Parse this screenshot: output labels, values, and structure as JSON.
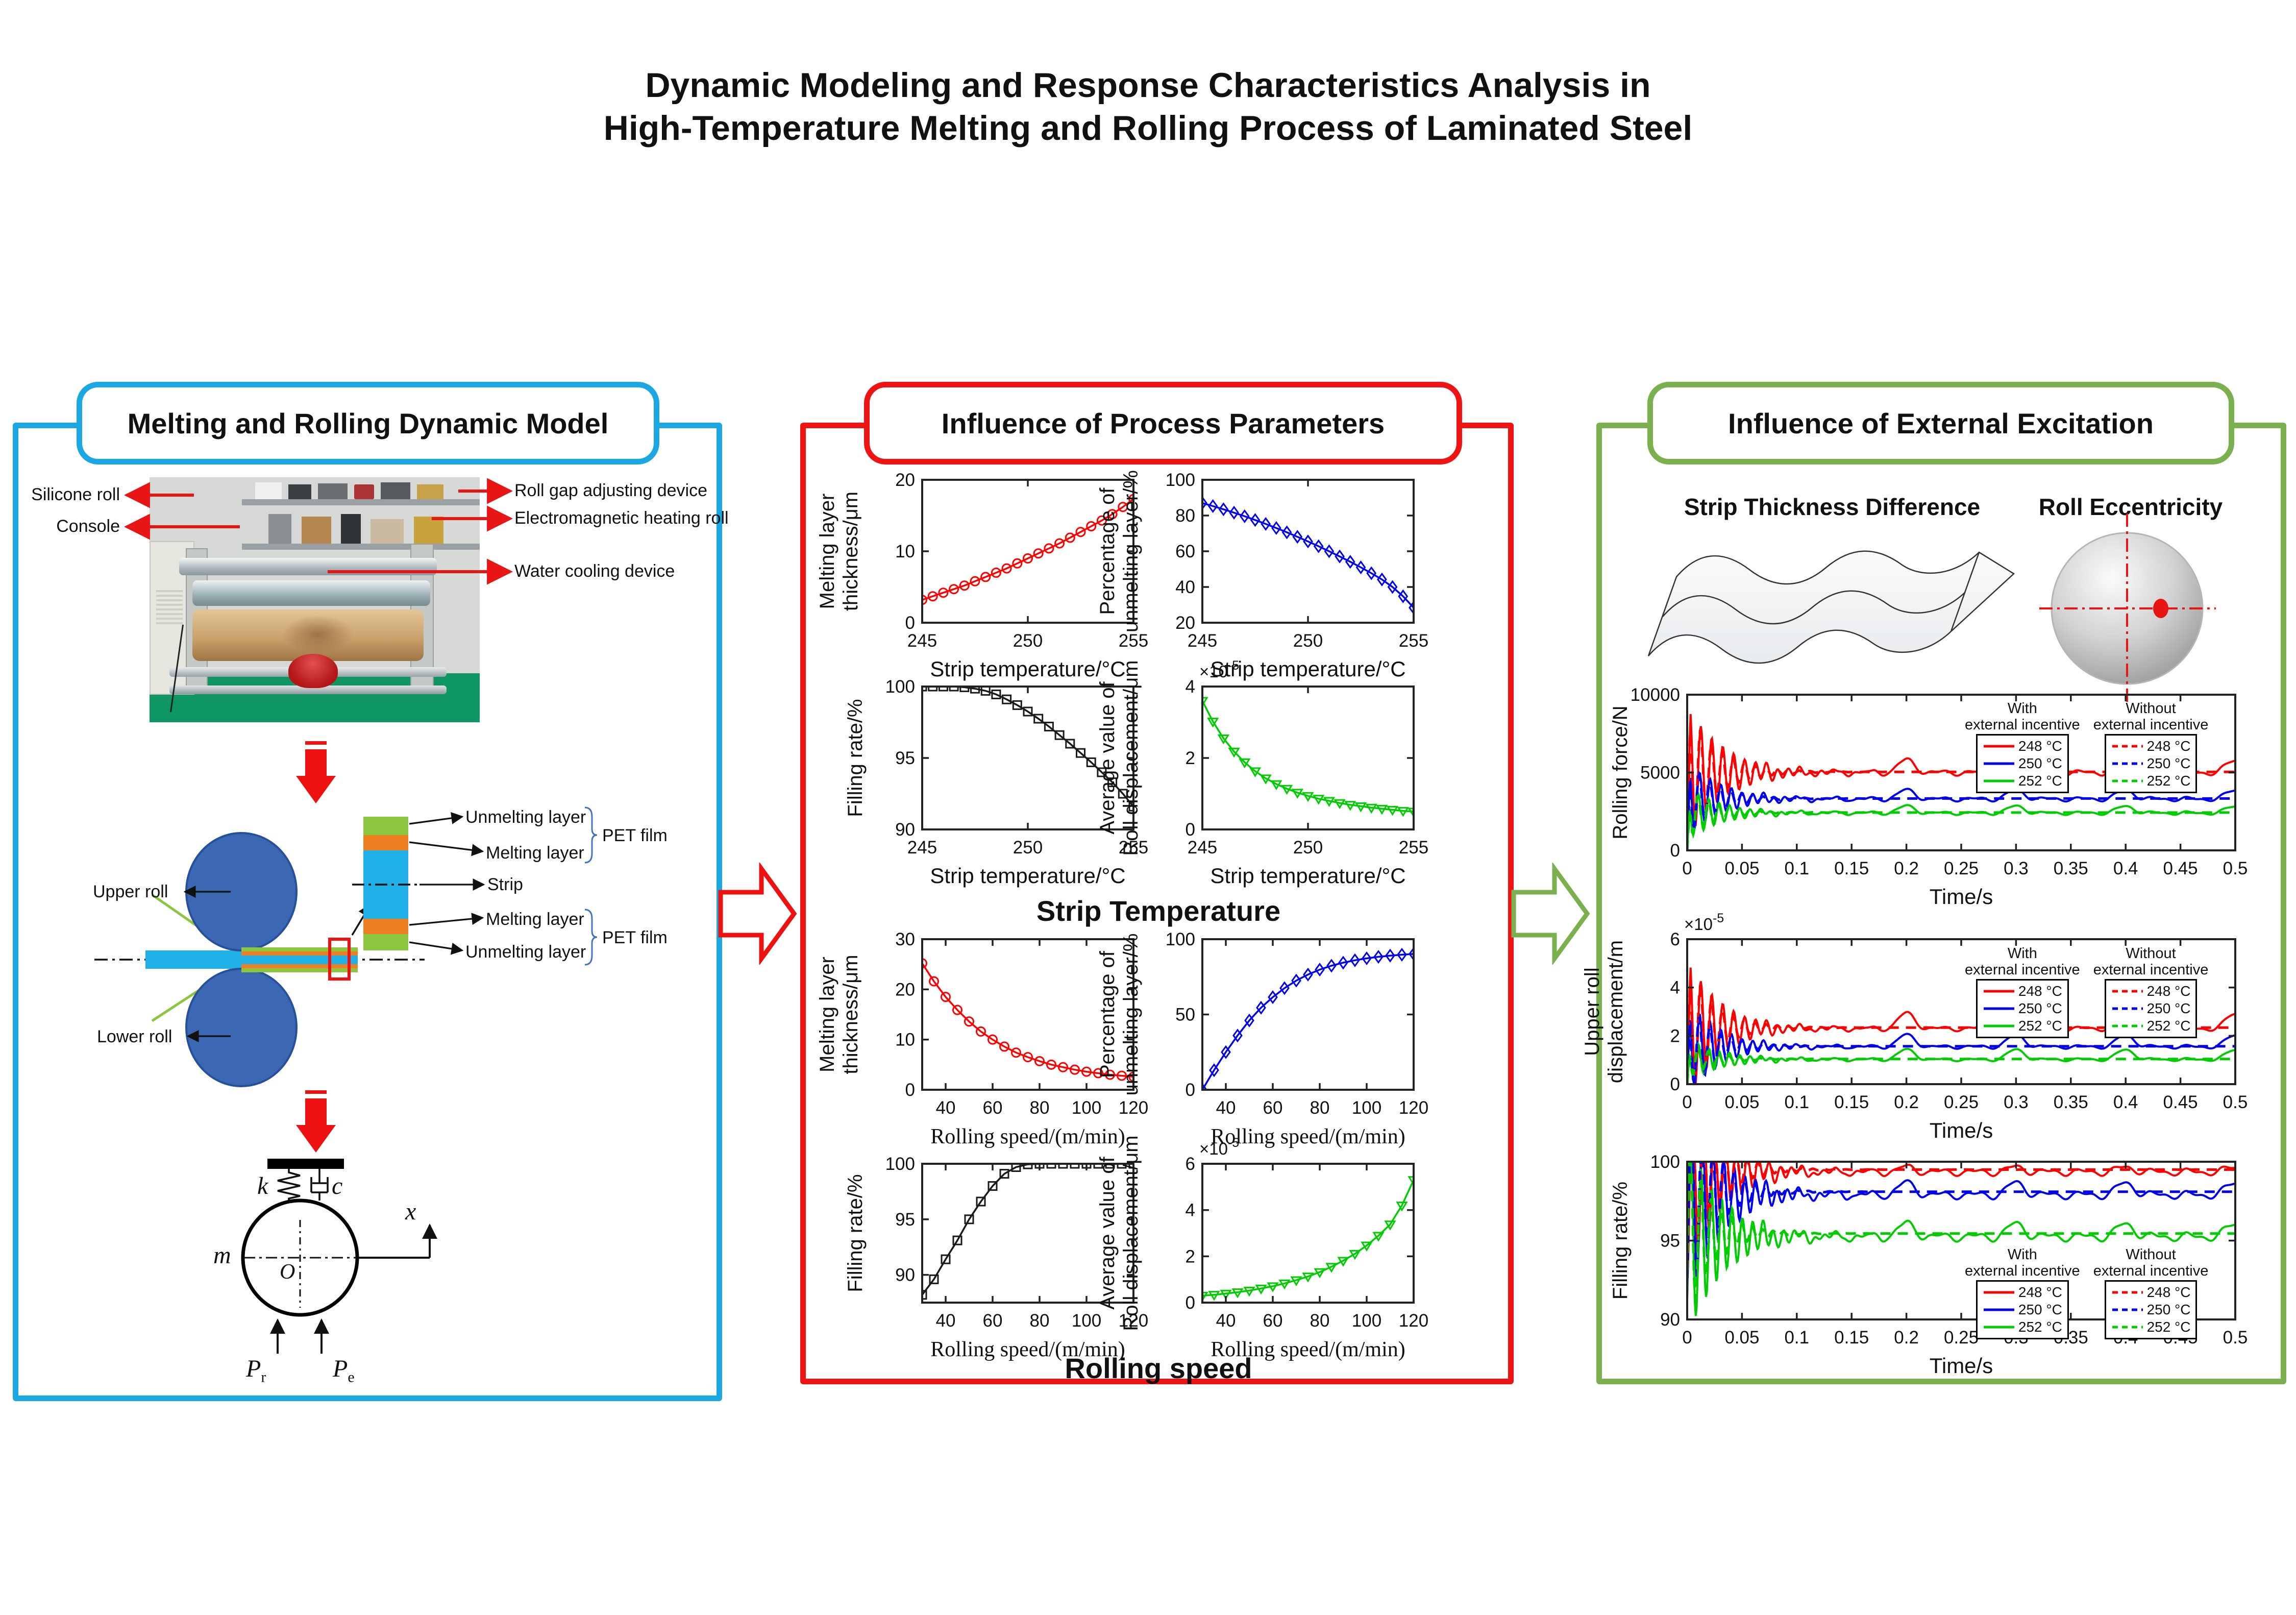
{
  "title": {
    "line1": "Dynamic Modeling and Response Characteristics Analysis in",
    "line2": "High-Temperature Melting and Rolling Process of Laminated Steel"
  },
  "panels": {
    "left": {
      "title": "Melting and Rolling Dynamic Model",
      "accent": "#1aa7e2"
    },
    "middle": {
      "title": "Influence of Process Parameters",
      "accent": "#ee1414",
      "sections": {
        "temperature": "Strip Temperature",
        "speed": "Rolling speed"
      }
    },
    "right": {
      "title": "Influence of External Excitation",
      "accent": "#7ab14e",
      "thickness_label": "Strip Thickness Difference",
      "eccentricity_label": "Roll Eccentricity"
    }
  },
  "photo": {
    "labels": {
      "silicone_roll": "Silicone roll",
      "console": "Console",
      "roll_gap": "Roll gap adjusting device",
      "heating_roll": "Electromagnetic heating roll",
      "water_cooling": "Water cooling device"
    }
  },
  "roll_diagram": {
    "upper_roll": "Upper roll",
    "lower_roll": "Lower roll",
    "unmelting_top": "Unmelting layer",
    "melting_top": "Melting layer",
    "pet_top": "PET film",
    "strip": "Strip",
    "melting_bottom": "Melting layer",
    "unmelting_bottom": "Unmelting layer",
    "pet_bottom": "PET film",
    "colors": {
      "roll_blue": "#3b67b3",
      "strip_cyan": "#1fb0e8",
      "melting_orange": "#ef8022",
      "unmelting_green": "#8cc63f"
    }
  },
  "mass_model": {
    "k": "k",
    "c": "c",
    "m": "m",
    "origin": "O",
    "x": "x",
    "pr_main": "P",
    "pr_sub": "r",
    "pe_main": "P",
    "pe_sub": "e"
  },
  "legend": {
    "with": [
      "With",
      "external incentive"
    ],
    "without": [
      "Without",
      "external incentive"
    ],
    "entries": [
      {
        "label": "248 °C",
        "color": "#ff0000"
      },
      {
        "label": "250 °C",
        "color": "#0000ee"
      },
      {
        "label": "252 °C",
        "color": "#00cc00"
      }
    ]
  },
  "chart_data": [
    {
      "id": "c1",
      "type": "line",
      "marker": "circle",
      "color": "#ff0000",
      "xlabel": "Strip temperature/°C",
      "ylabel": [
        "Melting layer",
        "thickness/μm"
      ],
      "xlim": [
        245,
        255
      ],
      "ylim": [
        0,
        20
      ],
      "xticks": [
        245,
        250,
        255
      ],
      "yticks": [
        0,
        10,
        20
      ],
      "x": [
        245,
        245.5,
        246,
        246.5,
        247,
        247.5,
        248,
        248.5,
        249,
        249.5,
        250,
        250.5,
        251,
        251.5,
        252,
        252.5,
        253,
        253.5,
        254,
        254.5,
        255
      ],
      "y": [
        3.2,
        3.7,
        4.2,
        4.7,
        5.2,
        5.8,
        6.4,
        7.0,
        7.6,
        8.3,
        9.0,
        9.7,
        10.4,
        11.1,
        11.9,
        12.7,
        13.5,
        14.3,
        15.2,
        16.2,
        17.3
      ]
    },
    {
      "id": "c2",
      "type": "line",
      "marker": "diamond",
      "color": "#0000ee",
      "xlabel": "Strip temperature/°C",
      "ylabel": [
        "Percentage of",
        "unmelting layer/%"
      ],
      "xlim": [
        245,
        255
      ],
      "ylim": [
        20,
        100
      ],
      "xticks": [
        245,
        250,
        255
      ],
      "yticks": [
        20,
        40,
        60,
        80,
        100
      ],
      "x": [
        245,
        245.5,
        246,
        246.5,
        247,
        247.5,
        248,
        248.5,
        249,
        249.5,
        250,
        250.5,
        251,
        251.5,
        252,
        252.5,
        253,
        253.5,
        254,
        254.5,
        255
      ],
      "y": [
        87.0,
        85.3,
        83.5,
        81.6,
        79.6,
        77.5,
        75.3,
        73.0,
        70.6,
        68.1,
        65.5,
        62.8,
        60.0,
        57.1,
        54.1,
        51.0,
        47.7,
        44.2,
        40.0,
        34.8,
        28.4
      ]
    },
    {
      "id": "c3",
      "type": "line",
      "marker": "square",
      "color": "#1a1a1a",
      "xlabel": "Strip temperature/°C",
      "ylabel": [
        "Filling rate/%"
      ],
      "xlim": [
        245,
        255
      ],
      "ylim": [
        90,
        100
      ],
      "xticks": [
        245,
        250,
        255
      ],
      "yticks": [
        90,
        95,
        100
      ],
      "x": [
        245,
        245.5,
        246,
        246.5,
        247,
        247.5,
        248,
        248.5,
        249,
        249.5,
        250,
        250.5,
        251,
        251.5,
        252,
        252.5,
        253,
        253.5,
        254,
        254.5,
        255
      ],
      "y": [
        100,
        100,
        100,
        100,
        99.95,
        99.85,
        99.7,
        99.45,
        99.1,
        98.7,
        98.25,
        97.75,
        97.2,
        96.6,
        96.0,
        95.35,
        94.7,
        94.0,
        93.3,
        92.5,
        91.6
      ]
    },
    {
      "id": "c4",
      "type": "line",
      "marker": "tridown",
      "color": "#00cc00",
      "exp": "-5",
      "xlabel": "Strip temperature/°C",
      "ylabel": [
        "Average value of",
        "Roll displacement/μm"
      ],
      "xlim": [
        245,
        255
      ],
      "ylim": [
        0,
        4
      ],
      "xticks": [
        245,
        250,
        255
      ],
      "yticks": [
        0,
        2,
        4
      ],
      "x": [
        245,
        245.5,
        246,
        246.5,
        247,
        247.5,
        248,
        248.5,
        249,
        249.5,
        250,
        250.5,
        251,
        251.5,
        252,
        252.5,
        253,
        253.5,
        254,
        254.5,
        255
      ],
      "y": [
        3.6,
        3.02,
        2.55,
        2.18,
        1.88,
        1.63,
        1.43,
        1.27,
        1.14,
        1.03,
        0.94,
        0.86,
        0.8,
        0.74,
        0.69,
        0.65,
        0.61,
        0.58,
        0.55,
        0.52,
        0.5
      ]
    },
    {
      "id": "c5",
      "type": "line",
      "marker": "circle",
      "color": "#ff0000",
      "xserif": true,
      "xlabel": "Rolling speed/(m/min)",
      "ylabel": [
        "Melting layer",
        "thickness/μm"
      ],
      "xlim": [
        30,
        120
      ],
      "ylim": [
        0,
        30
      ],
      "xticks": [
        40,
        60,
        80,
        100,
        120
      ],
      "yticks": [
        0,
        10,
        20,
        30
      ],
      "x": [
        30,
        35,
        40,
        45,
        50,
        55,
        60,
        65,
        70,
        75,
        80,
        85,
        90,
        95,
        100,
        105,
        110,
        115,
        120
      ],
      "y": [
        25.2,
        21.6,
        18.5,
        15.9,
        13.6,
        11.6,
        10.0,
        8.6,
        7.4,
        6.5,
        5.7,
        5.0,
        4.5,
        4.0,
        3.6,
        3.3,
        3.0,
        2.8,
        2.6
      ]
    },
    {
      "id": "c6",
      "type": "line",
      "marker": "diamond",
      "color": "#0000ee",
      "xserif": true,
      "xlabel": "Rolling speed/(m/min)",
      "ylabel": [
        "Percentage of",
        "unmelting layer/%"
      ],
      "xlim": [
        30,
        120
      ],
      "ylim": [
        0,
        100
      ],
      "xticks": [
        40,
        60,
        80,
        100,
        120
      ],
      "yticks": [
        0,
        50,
        100
      ],
      "x": [
        30,
        35,
        40,
        45,
        50,
        55,
        60,
        65,
        70,
        75,
        80,
        85,
        90,
        95,
        100,
        105,
        110,
        115,
        120
      ],
      "y": [
        0,
        13,
        25,
        36,
        46,
        54.5,
        61.5,
        67.5,
        72.5,
        76.5,
        79.8,
        82.4,
        84.4,
        86.0,
        87.3,
        88.3,
        89.1,
        89.7,
        90.2
      ]
    },
    {
      "id": "c7",
      "type": "line",
      "marker": "square",
      "color": "#1a1a1a",
      "xserif": true,
      "xlabel": "Rolling speed/(m/min)",
      "ylabel": [
        "Filling rate/%"
      ],
      "xlim": [
        30,
        120
      ],
      "ylim": [
        87.5,
        100
      ],
      "xticks": [
        40,
        60,
        80,
        100,
        120
      ],
      "yticks": [
        90,
        95,
        100
      ],
      "x": [
        30,
        35,
        40,
        45,
        50,
        55,
        60,
        65,
        70,
        75,
        80,
        85,
        90,
        95,
        100,
        105,
        110,
        115,
        120
      ],
      "y": [
        88.2,
        89.6,
        91.4,
        93.1,
        95.0,
        96.6,
        98.0,
        99.1,
        99.7,
        99.95,
        100,
        100,
        100,
        100,
        100,
        100,
        100,
        100,
        100
      ]
    },
    {
      "id": "c8",
      "type": "line",
      "marker": "tridown",
      "color": "#00cc00",
      "exp": "-5",
      "xserif": true,
      "xlabel": "Rolling speed/(m/min)",
      "ylabel": [
        "Average value of",
        "Roll displacement/μm"
      ],
      "xlim": [
        30,
        120
      ],
      "ylim": [
        0,
        6
      ],
      "xticks": [
        40,
        60,
        80,
        100,
        120
      ],
      "yticks": [
        0,
        2,
        4,
        6
      ],
      "x": [
        30,
        35,
        40,
        45,
        50,
        55,
        60,
        65,
        70,
        75,
        80,
        85,
        90,
        95,
        100,
        105,
        110,
        115,
        120
      ],
      "y": [
        0.3,
        0.34,
        0.39,
        0.45,
        0.52,
        0.61,
        0.71,
        0.83,
        0.97,
        1.13,
        1.32,
        1.55,
        1.81,
        2.11,
        2.47,
        2.89,
        3.38,
        4.2,
        5.3
      ]
    },
    {
      "id": "t1",
      "type": "line-multi",
      "xlabel": "Time/s",
      "ylabel": [
        "Rolling force/N"
      ],
      "xlim": [
        0,
        0.5
      ],
      "ylim": [
        0,
        10000
      ],
      "xticks": [
        0,
        0.05,
        0.1,
        0.15,
        0.2,
        0.25,
        0.3,
        0.35,
        0.4,
        0.45,
        0.5
      ],
      "xtick_labels": [
        "0",
        "0.05",
        "0.1",
        "0.15",
        "0.2",
        "0.25",
        "0.3",
        "0.35",
        "0.4",
        "0.45",
        "0.5"
      ],
      "yticks": [
        0,
        5000,
        10000
      ],
      "series": [
        {
          "name": "With 248 °C",
          "color": "#ff0000",
          "dash": false,
          "synthesis": {
            "base": 5000,
            "amp": 4400,
            "tau": 0.033,
            "f": 100,
            "phase": 0,
            "bump": 780,
            "ripple": 130,
            "ramp": 0.003,
            "clampMin": 0
          }
        },
        {
          "name": "With 250 °C",
          "color": "#0000ee",
          "dash": false,
          "synthesis": {
            "base": 3300,
            "amp": 2500,
            "tau": 0.031,
            "f": 103,
            "phase": 0.5,
            "bump": 560,
            "ripple": 100,
            "ramp": 0.003,
            "clampMin": 0
          }
        },
        {
          "name": "With 252 °C",
          "color": "#00cc00",
          "dash": false,
          "synthesis": {
            "base": 2400,
            "amp": 1750,
            "tau": 0.03,
            "f": 106,
            "phase": 1.0,
            "bump": 430,
            "ripple": 80,
            "ramp": 0.003,
            "clampMin": 0
          }
        },
        {
          "name": "Without 248 °C",
          "color": "#ff0000",
          "dash": true,
          "synthesis": {
            "base": 5040,
            "amp": 4200,
            "tau": 0.026,
            "f": 100,
            "phase": 0.2,
            "ramp": 0.003,
            "clampMin": 0
          }
        },
        {
          "name": "Without 250 °C",
          "color": "#0000ee",
          "dash": true,
          "synthesis": {
            "base": 3330,
            "amp": 2400,
            "tau": 0.024,
            "f": 103,
            "phase": 0.7,
            "ramp": 0.003,
            "clampMin": 0
          }
        },
        {
          "name": "Without 252 °C",
          "color": "#00cc00",
          "dash": true,
          "synthesis": {
            "base": 2430,
            "amp": 1700,
            "tau": 0.023,
            "f": 106,
            "phase": 1.2,
            "ramp": 0.003,
            "clampMin": 0
          }
        }
      ]
    },
    {
      "id": "t2",
      "type": "line-multi",
      "xlabel": "Time/s",
      "ylabel": [
        "Upper roll",
        "displacement/m"
      ],
      "exp": "-5",
      "xlim": [
        0,
        0.5
      ],
      "ylim": [
        0,
        6
      ],
      "xticks": [
        0,
        0.05,
        0.1,
        0.15,
        0.2,
        0.25,
        0.3,
        0.35,
        0.4,
        0.45,
        0.5
      ],
      "xtick_labels": [
        "0",
        "0.05",
        "0.1",
        "0.15",
        "0.2",
        "0.25",
        "0.3",
        "0.35",
        "0.4",
        "0.45",
        "0.5"
      ],
      "yticks": [
        0,
        2,
        4,
        6
      ],
      "series": [
        {
          "name": "With 248 °C",
          "color": "#ff0000",
          "dash": false,
          "synthesis": {
            "base": 2.3,
            "amp": 3.0,
            "tau": 0.03,
            "f": 100,
            "phase": 0,
            "bump": 0.62,
            "ripple": 0.07,
            "ramp": 0.003,
            "clampMin": 0
          }
        },
        {
          "name": "With 250 °C",
          "color": "#0000ee",
          "dash": false,
          "synthesis": {
            "base": 1.55,
            "amp": 2.05,
            "tau": 0.029,
            "f": 103,
            "phase": 0.5,
            "bump": 0.48,
            "ripple": 0.055,
            "ramp": 0.003,
            "clampMin": 0
          }
        },
        {
          "name": "With 252 °C",
          "color": "#00cc00",
          "dash": false,
          "synthesis": {
            "base": 1.02,
            "amp": 0.88,
            "tau": 0.032,
            "f": 106,
            "phase": 1.0,
            "bump": 0.4,
            "ripple": 0.045,
            "ramp": 0.003,
            "clampMin": 0
          }
        },
        {
          "name": "Without 248 °C",
          "color": "#ff0000",
          "dash": true,
          "synthesis": {
            "base": 2.34,
            "amp": 2.8,
            "tau": 0.024,
            "f": 100,
            "phase": 0.2,
            "ramp": 0.003,
            "clampMin": 0
          }
        },
        {
          "name": "Without 250 °C",
          "color": "#0000ee",
          "dash": true,
          "synthesis": {
            "base": 1.57,
            "amp": 1.95,
            "tau": 0.023,
            "f": 103,
            "phase": 0.7,
            "ramp": 0.003,
            "clampMin": 0
          }
        },
        {
          "name": "Without 252 °C",
          "color": "#00cc00",
          "dash": true,
          "synthesis": {
            "base": 1.04,
            "amp": 0.8,
            "tau": 0.022,
            "f": 106,
            "phase": 1.2,
            "ramp": 0.003,
            "clampMin": 0
          }
        }
      ]
    },
    {
      "id": "t3",
      "type": "line-multi",
      "xlabel": "Time/s",
      "ylabel": [
        "Filling rate/%"
      ],
      "xlim": [
        0,
        0.5
      ],
      "ylim": [
        90,
        100
      ],
      "xticks": [
        0,
        0.05,
        0.1,
        0.15,
        0.2,
        0.25,
        0.3,
        0.35,
        0.4,
        0.45,
        0.5
      ],
      "xtick_labels": [
        "0",
        "0.05",
        "0.1",
        "0.15",
        "0.2",
        "0.25",
        "0.3",
        "0.35",
        "0.4",
        "0.45",
        "0.5"
      ],
      "yticks": [
        90,
        95,
        100
      ],
      "series": [
        {
          "name": "With 248 °C",
          "color": "#ff0000",
          "dash": false,
          "synthesis": {
            "base": 99.35,
            "amp": 7.0,
            "tau": 0.03,
            "f": 100,
            "phase": -1.5708,
            "bump": 0.3,
            "ripple": 0.16,
            "clampMin": 90,
            "clampMax": 100
          }
        },
        {
          "name": "With 250 °C",
          "color": "#0000ee",
          "dash": false,
          "synthesis": {
            "base": 97.9,
            "amp": 7.5,
            "tau": 0.03,
            "f": 103,
            "phase": -1.1,
            "bump": 0.75,
            "ripple": 0.18,
            "clampMin": 90,
            "clampMax": 100
          }
        },
        {
          "name": "With 252 °C",
          "color": "#00cc00",
          "dash": false,
          "synthesis": {
            "base": 95.25,
            "amp": 6.5,
            "tau": 0.032,
            "f": 106,
            "phase": -0.6,
            "bump": 0.8,
            "ripple": 0.2,
            "clampMin": 90,
            "clampMax": 100
          }
        },
        {
          "name": "Without 248 °C",
          "color": "#ff0000",
          "dash": true,
          "synthesis": {
            "base": 99.5,
            "amp": 6.5,
            "tau": 0.024,
            "f": 100,
            "phase": -1.4,
            "clampMin": 90,
            "clampMax": 100
          }
        },
        {
          "name": "Without 250 °C",
          "color": "#0000ee",
          "dash": true,
          "synthesis": {
            "base": 98.1,
            "amp": 7.0,
            "tau": 0.023,
            "f": 103,
            "phase": -0.9,
            "clampMin": 90,
            "clampMax": 100
          }
        },
        {
          "name": "Without 252 °C",
          "color": "#00cc00",
          "dash": true,
          "synthesis": {
            "base": 95.45,
            "amp": 6.0,
            "tau": 0.022,
            "f": 106,
            "phase": -0.4,
            "clampMin": 90,
            "clampMax": 100
          }
        }
      ]
    }
  ]
}
